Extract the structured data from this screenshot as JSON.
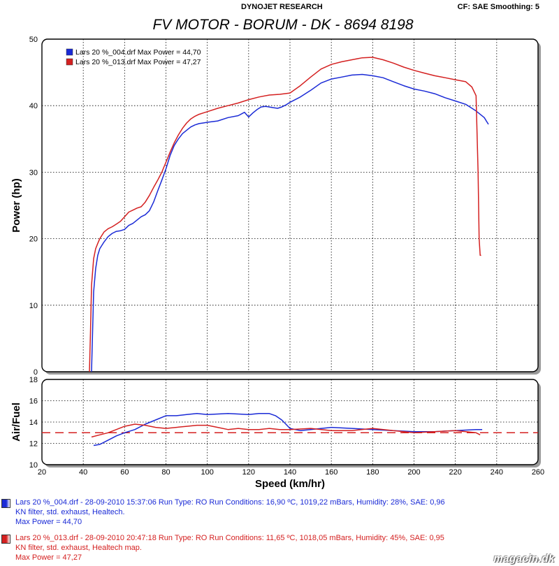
{
  "header": {
    "brand": "DYNOJET RESEARCH",
    "settings": "CF: SAE  Smoothing: 5",
    "title": "FV MOTOR - BORUM - DK - 8694 8198"
  },
  "chart_data": [
    {
      "type": "line",
      "xlabel": "",
      "ylabel": "Power (hp)",
      "xlim": [
        20,
        260
      ],
      "ylim": [
        0,
        50
      ],
      "x_ticks": [
        20,
        40,
        60,
        80,
        100,
        120,
        140,
        160,
        180,
        200,
        220,
        240,
        260
      ],
      "y_ticks": [
        0,
        10,
        20,
        30,
        40,
        50
      ],
      "grid": true,
      "legend": "top-left",
      "legend_labels": [
        "Lars 20 %_004.drf Max Power = 44,70",
        "Lars 20 %_013.drf Max Power = 47,27"
      ],
      "series": [
        {
          "name": "Lars 20 %_004.drf",
          "color": "#1a2ad6",
          "x": [
            44,
            44.5,
            45,
            46,
            47,
            48,
            50,
            52,
            54,
            56,
            58,
            60,
            62,
            64,
            66,
            68,
            70,
            72,
            74,
            76,
            78,
            80,
            82,
            84,
            86,
            88,
            90,
            92,
            94,
            96,
            98,
            100,
            105,
            110,
            115,
            118,
            120,
            122,
            124,
            126,
            128,
            130,
            132,
            134,
            136,
            138,
            140,
            145,
            150,
            155,
            160,
            165,
            170,
            175,
            180,
            185,
            190,
            195,
            200,
            205,
            210,
            215,
            220,
            225,
            230,
            232,
            234,
            235,
            236
          ],
          "y": [
            0,
            6,
            12,
            15.5,
            17.5,
            18.5,
            19.5,
            20.3,
            20.8,
            21.1,
            21.2,
            21.4,
            22,
            22.3,
            22.8,
            23.3,
            23.6,
            24.2,
            25.5,
            27.2,
            28.8,
            30.5,
            32.5,
            34,
            35,
            35.8,
            36.3,
            36.8,
            37.1,
            37.3,
            37.4,
            37.5,
            37.7,
            38.2,
            38.5,
            39,
            38.3,
            38.9,
            39.4,
            39.8,
            39.9,
            39.8,
            39.7,
            39.6,
            39.8,
            40.1,
            40.5,
            41.3,
            42.3,
            43.4,
            44,
            44.3,
            44.6,
            44.7,
            44.5,
            44.2,
            43.6,
            43,
            42.5,
            42.2,
            41.8,
            41.2,
            40.7,
            40.2,
            39.2,
            38.7,
            38.2,
            37.7,
            37.2
          ]
        },
        {
          "name": "Lars 20 %_013.drf",
          "color": "#d42020",
          "x": [
            43,
            43.5,
            44,
            45,
            46,
            47,
            48,
            50,
            52,
            54,
            56,
            58,
            60,
            62,
            64,
            66,
            68,
            70,
            72,
            74,
            76,
            78,
            80,
            82,
            84,
            86,
            88,
            90,
            92,
            94,
            96,
            98,
            100,
            105,
            110,
            115,
            120,
            125,
            130,
            135,
            140,
            145,
            150,
            155,
            160,
            165,
            170,
            175,
            180,
            185,
            190,
            195,
            200,
            205,
            210,
            215,
            220,
            225,
            228,
            230,
            231,
            231.5,
            232,
            232.5
          ],
          "y": [
            0,
            6,
            13,
            17,
            18.5,
            19.3,
            20,
            21,
            21.5,
            21.8,
            22.2,
            22.6,
            23.3,
            24,
            24.3,
            24.6,
            24.8,
            25.5,
            26.5,
            27.7,
            28.8,
            30,
            31.5,
            33,
            34.4,
            35.6,
            36.6,
            37.4,
            38,
            38.4,
            38.7,
            38.9,
            39.1,
            39.6,
            40,
            40.4,
            40.9,
            41.3,
            41.6,
            41.7,
            41.9,
            43,
            44.3,
            45.5,
            46.2,
            46.6,
            46.9,
            47.2,
            47.27,
            46.9,
            46.4,
            45.8,
            45.3,
            44.9,
            44.5,
            44.2,
            43.9,
            43.6,
            42.8,
            41.5,
            30,
            20,
            17.5,
            17.5
          ]
        }
      ]
    },
    {
      "type": "line",
      "xlabel": "Speed (km/hr)",
      "ylabel": "Air/Fuel",
      "xlim": [
        20,
        260
      ],
      "ylim": [
        10,
        18
      ],
      "x_ticks": [
        20,
        40,
        60,
        80,
        100,
        120,
        140,
        160,
        180,
        200,
        220,
        240,
        260
      ],
      "y_ticks": [
        10,
        12,
        14,
        16,
        18
      ],
      "grid": true,
      "reference_line": {
        "y": 13,
        "color": "#d42020",
        "style": "dashed"
      },
      "series": [
        {
          "name": "Lars 20 %_004.drf",
          "color": "#1a2ad6",
          "x": [
            45,
            48,
            52,
            56,
            60,
            65,
            70,
            75,
            80,
            85,
            90,
            95,
            100,
            110,
            120,
            125,
            130,
            133,
            136,
            138,
            140,
            145,
            150,
            160,
            170,
            180,
            190,
            200,
            210,
            220,
            230,
            233
          ],
          "y": [
            11.8,
            11.9,
            12.3,
            12.7,
            13,
            13.3,
            13.8,
            14.2,
            14.6,
            14.6,
            14.7,
            14.8,
            14.7,
            14.8,
            14.7,
            14.8,
            14.8,
            14.6,
            14.2,
            13.8,
            13.4,
            13.2,
            13.3,
            13.5,
            13.4,
            13.3,
            13.2,
            13.1,
            13.1,
            13.2,
            13.3,
            13.3
          ]
        },
        {
          "name": "Lars 20 %_013.drf",
          "color": "#d42020",
          "x": [
            44,
            48,
            52,
            56,
            60,
            65,
            70,
            75,
            80,
            85,
            90,
            95,
            100,
            105,
            110,
            115,
            120,
            125,
            130,
            135,
            140,
            150,
            160,
            170,
            180,
            190,
            200,
            210,
            220,
            225,
            230,
            232
          ],
          "y": [
            12.6,
            12.8,
            13,
            13.3,
            13.6,
            13.8,
            13.7,
            13.5,
            13.4,
            13.5,
            13.6,
            13.7,
            13.7,
            13.5,
            13.3,
            13.4,
            13.3,
            13.3,
            13.4,
            13.3,
            13.3,
            13.4,
            13.2,
            13.2,
            13.4,
            13.2,
            13,
            13.1,
            13.2,
            13.1,
            13,
            12.8
          ]
        }
      ]
    }
  ],
  "runs": [
    {
      "color": "#1a2ad6",
      "line1": "Lars 20 %_004.drf - 28-09-2010 15:37:06  Run Type: RO  Run Conditions: 16,90 ºC, 1019,22 mBars,  Humidity:  28%, SAE: 0,96",
      "line2": "KN filter, std. exhaust, Healtech.",
      "line3": "Max Power = 44,70"
    },
    {
      "color": "#d42020",
      "line1": "Lars 20 %_013.drf - 28-09-2010 20:47:18  Run Type: RO  Run Conditions: 11,65 ºC, 1018,05 mBars,  Humidity:  45%, SAE: 0,95",
      "line2": "KN filter, std. exhaust, Healtech map.",
      "line3": "Max Power = 47,27"
    }
  ],
  "watermark": "magacin.dk"
}
